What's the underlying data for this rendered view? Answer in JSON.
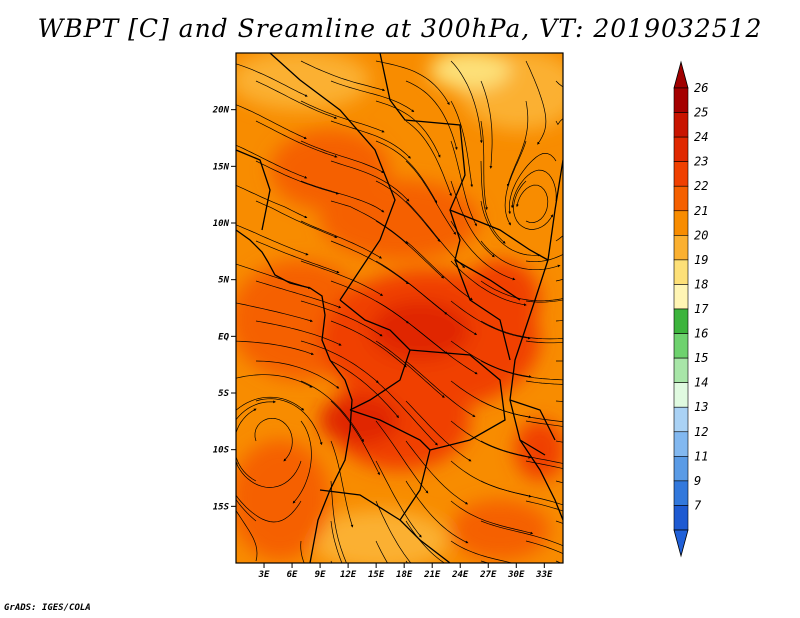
{
  "title": "WBPT [C] and Sreamline at 300hPa, VT: 2019032512",
  "footer": "GrADS: IGES/COLA",
  "map": {
    "lat_ticks": [
      "20N",
      "15N",
      "10N",
      "5N",
      "EQ",
      "5S",
      "10S",
      "15S"
    ],
    "lat_values": [
      20,
      15,
      10,
      5,
      0,
      -5,
      -10,
      -15
    ],
    "lon_ticks": [
      "3E",
      "6E",
      "9E",
      "12E",
      "15E",
      "18E",
      "21E",
      "24E",
      "27E",
      "30E",
      "33E"
    ],
    "lon_values": [
      3,
      6,
      9,
      12,
      15,
      18,
      21,
      24,
      27,
      30,
      33
    ],
    "lon_range": [
      0,
      35
    ],
    "lat_range": [
      -20,
      25
    ]
  },
  "colorbar": {
    "labels": [
      "26",
      "25",
      "24",
      "23",
      "22",
      "21",
      "20",
      "19",
      "18",
      "17",
      "16",
      "15",
      "14",
      "13",
      "12",
      "11",
      "9",
      "7"
    ],
    "colors": [
      "#a50000",
      "#c81400",
      "#e02800",
      "#f04000",
      "#f56000",
      "#f88c00",
      "#fbb030",
      "#fde078",
      "#fff5b4",
      "#3cb43c",
      "#6ed26e",
      "#a8e6a8",
      "#e0fae0",
      "#aad2f5",
      "#82b8f0",
      "#5a9be6",
      "#3278dc",
      "#1e5ad2"
    ],
    "top_arrow_color": "#a00000",
    "bottom_arrow_color": "#2060d8"
  }
}
